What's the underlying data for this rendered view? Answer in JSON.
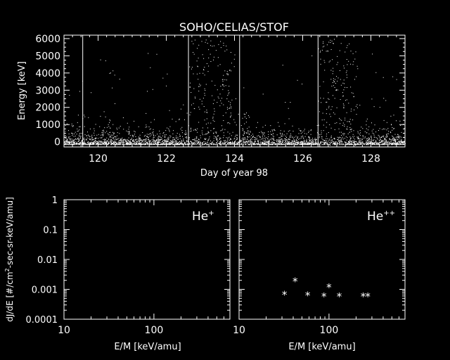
{
  "colors": {
    "background": "#000000",
    "foreground": "#ffffff"
  },
  "chart_data": [
    {
      "id": "energy_time",
      "type": "scatter",
      "title": "SOHO/CELIAS/STOF",
      "xlabel": "Day of year 98",
      "ylabel": "Energy [keV]",
      "xlim": [
        119.0,
        129.0
      ],
      "ylim": [
        -300,
        6200
      ],
      "xticks": [
        120,
        122,
        124,
        126,
        128
      ],
      "yticks": [
        0,
        1000,
        2000,
        3000,
        4000,
        5000,
        6000
      ],
      "marker_lines_x": [
        119.55,
        122.65,
        124.15,
        126.45
      ],
      "distribution_note": "dense cloud of events mostly below 1500 keV across days 119-129; enhanced high-energy bursts after days 122.6 and 126.4 extending to 6000 keV; smaller enhancement near day 124.2"
    },
    {
      "id": "he_plus",
      "type": "scatter",
      "panel_label": "He",
      "panel_label_sup": "+",
      "xlabel": "E/M [keV/amu]",
      "ylabel": "dJ/dE",
      "xscale": "log",
      "yscale": "log",
      "xlim": [
        10,
        700
      ],
      "ylim": [
        0.0001,
        1
      ],
      "xtick_labels": [
        "10",
        "100"
      ],
      "ytick_labels": [
        "1",
        "0.1",
        "0.01",
        "0.001",
        "0.0001"
      ],
      "x": [],
      "y": []
    },
    {
      "id": "he_plusplus",
      "type": "scatter",
      "panel_label": "He",
      "panel_label_sup": "++",
      "xlabel": "E/M [keV/amu]",
      "xscale": "log",
      "yscale": "log",
      "xlim": [
        10,
        700
      ],
      "ylim": [
        0.0001,
        1
      ],
      "xtick_labels": [
        "10",
        "100"
      ],
      "marker": "*",
      "x": [
        32,
        42,
        58,
        88,
        100,
        130,
        240,
        270
      ],
      "y": [
        0.00068,
        0.0019,
        0.00064,
        0.0006,
        0.0012,
        0.0006,
        0.0006,
        0.0006
      ]
    }
  ],
  "ylabel_spectra": {
    "prefix": "dJ/dE [#/cm",
    "sup": "2",
    "suffix": "-sec-sr-keV/amu]"
  }
}
